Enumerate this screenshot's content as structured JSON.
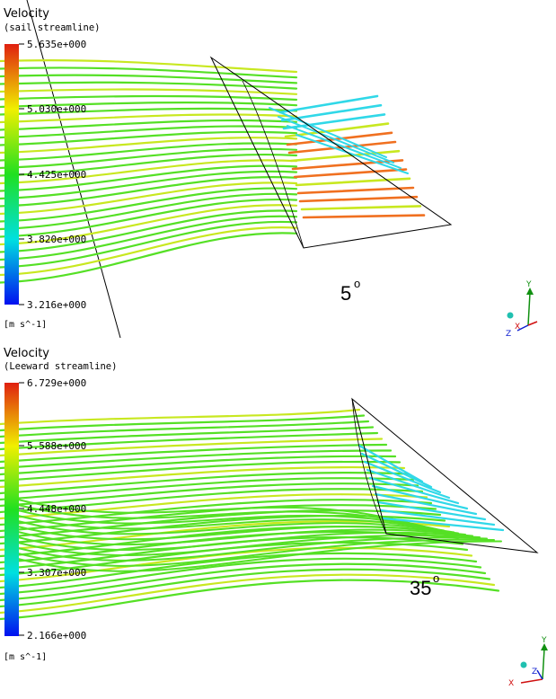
{
  "panels": [
    {
      "id": "top",
      "legend": {
        "title": "Velocity",
        "subtitle": "(sail streamline)",
        "ticks": [
          "5.635e+000",
          "5.030e+000",
          "4.425e+000",
          "3.820e+000",
          "3.216e+000"
        ],
        "unit": "[m s^-1]"
      },
      "angle": "5",
      "angle_suffix": "o",
      "axes": {
        "y": "Y",
        "x": "X",
        "z": "Z"
      }
    },
    {
      "id": "bottom",
      "legend": {
        "title": "Velocity",
        "subtitle": "(Leeward streamline)",
        "ticks": [
          "6.729e+000",
          "5.588e+000",
          "4.448e+000",
          "3.307e+000",
          "2.166e+000"
        ],
        "unit": "[m s^-1]"
      },
      "angle": "35",
      "angle_suffix": "o",
      "axes": {
        "y": "Y",
        "x": "X",
        "z": "Z"
      }
    }
  ],
  "colors": {
    "scale_top": "#e02010",
    "scale_upper": "#f0f000",
    "scale_mid": "#20e020",
    "scale_lower": "#00e0e0",
    "scale_bottom": "#0010f0",
    "streamline_main": "#55e025",
    "streamline_yellow": "#c8e820",
    "streamline_cyan": "#30d8e8",
    "streamline_orange": "#f07020"
  }
}
